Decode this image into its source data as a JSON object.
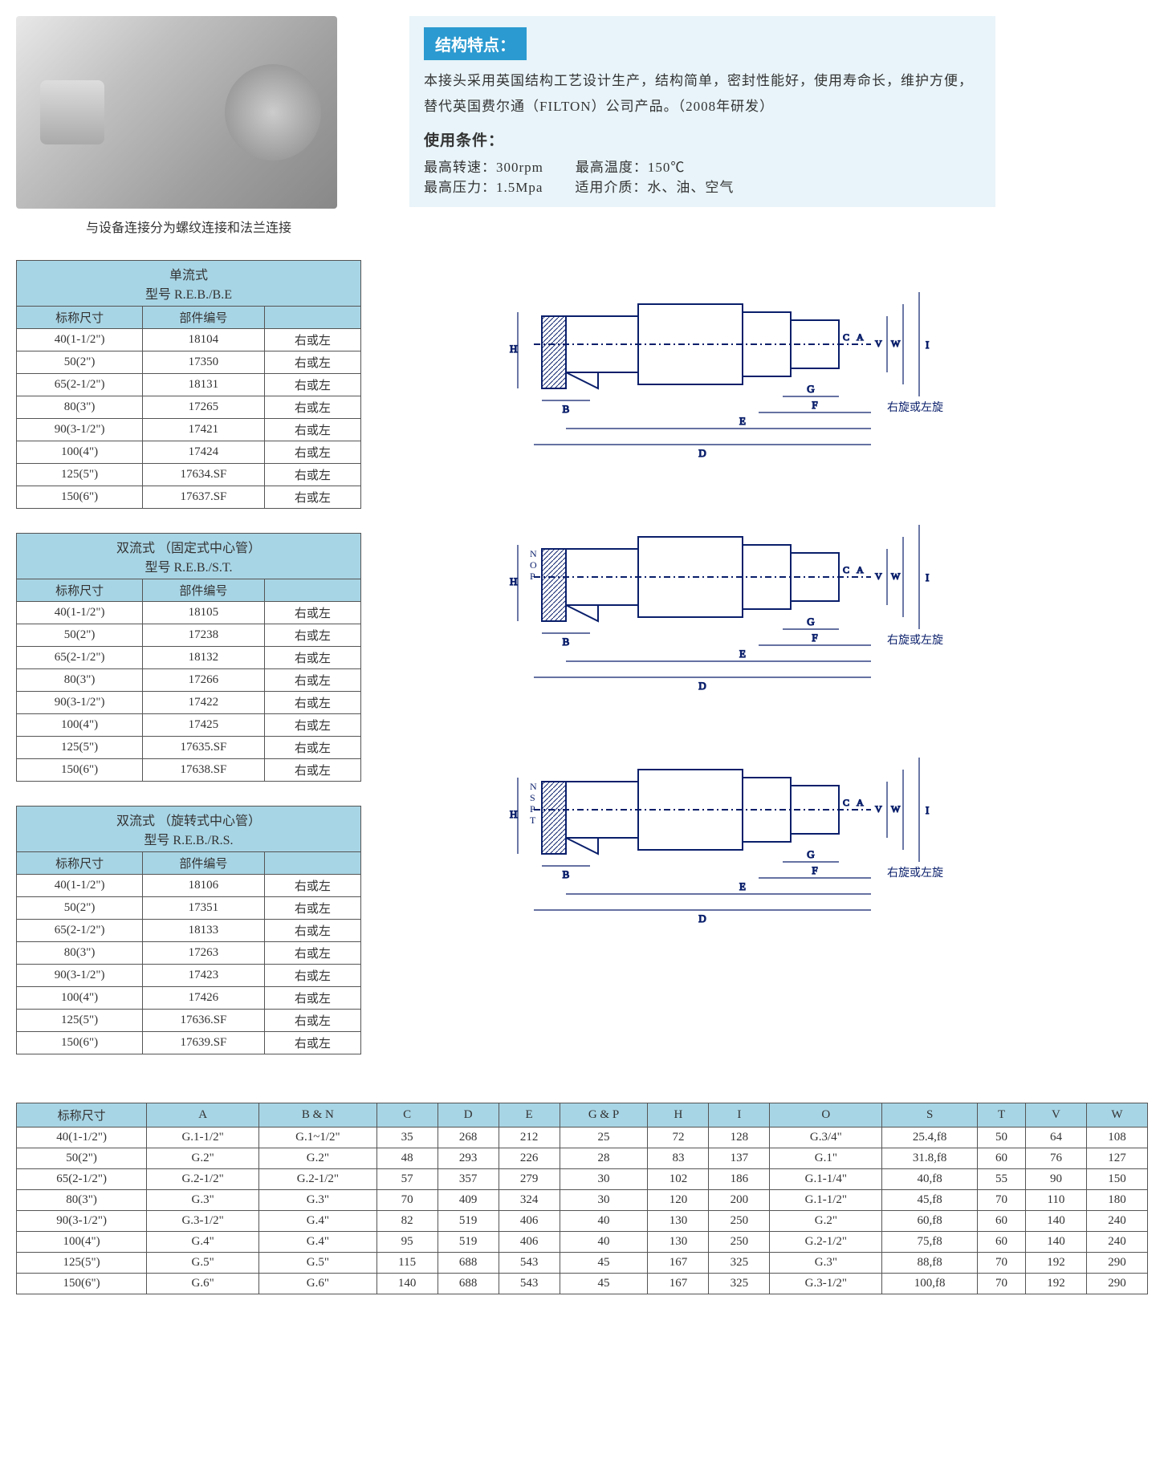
{
  "caption": "与设备连接分为螺纹连接和法兰连接",
  "features_header": "结构特点：",
  "features_text": "本接头采用英国结构工艺设计生产，结构简单，密封性能好，使用寿命长，维护方便，替代英国费尔通（FILTON）公司产品。（2008年研发）",
  "conditions_label": "使用条件：",
  "cond_speed": "最高转速：300rpm",
  "cond_temp": "最高温度：150℃",
  "cond_press": "最高压力：1.5Mpa",
  "cond_medium": "适用介质：水、油、空气",
  "tables": [
    {
      "title1": "单流式",
      "title2": "型号 R.E.B./B.E",
      "col1": "标称尺寸",
      "col2": "部件编号",
      "col3": "",
      "rows": [
        [
          "40(1-1/2\")",
          "18104",
          "右或左"
        ],
        [
          "50(2\")",
          "17350",
          "右或左"
        ],
        [
          "65(2-1/2\")",
          "18131",
          "右或左"
        ],
        [
          "80(3\")",
          "17265",
          "右或左"
        ],
        [
          "90(3-1/2\")",
          "17421",
          "右或左"
        ],
        [
          "100(4\")",
          "17424",
          "右或左"
        ],
        [
          "125(5\")",
          "17634.SF",
          "右或左"
        ],
        [
          "150(6\")",
          "17637.SF",
          "右或左"
        ]
      ]
    },
    {
      "title1": "双流式 （固定式中心管）",
      "title2": "型号 R.E.B./S.T.",
      "col1": "标称尺寸",
      "col2": "部件编号",
      "col3": "",
      "rows": [
        [
          "40(1-1/2\")",
          "18105",
          "右或左"
        ],
        [
          "50(2\")",
          "17238",
          "右或左"
        ],
        [
          "65(2-1/2\")",
          "18132",
          "右或左"
        ],
        [
          "80(3\")",
          "17266",
          "右或左"
        ],
        [
          "90(3-1/2\")",
          "17422",
          "右或左"
        ],
        [
          "100(4\")",
          "17425",
          "右或左"
        ],
        [
          "125(5\")",
          "17635.SF",
          "右或左"
        ],
        [
          "150(6\")",
          "17638.SF",
          "右或左"
        ]
      ]
    },
    {
      "title1": "双流式 （旋转式中心管）",
      "title2": "型号 R.E.B./R.S.",
      "col1": "标称尺寸",
      "col2": "部件编号",
      "col3": "",
      "rows": [
        [
          "40(1-1/2\")",
          "18106",
          "右或左"
        ],
        [
          "50(2\")",
          "17351",
          "右或左"
        ],
        [
          "65(2-1/2\")",
          "18133",
          "右或左"
        ],
        [
          "80(3\")",
          "17263",
          "右或左"
        ],
        [
          "90(3-1/2\")",
          "17423",
          "右或左"
        ],
        [
          "100(4\")",
          "17426",
          "右或左"
        ],
        [
          "125(5\")",
          "17636.SF",
          "右或左"
        ],
        [
          "150(6\")",
          "17639.SF",
          "右或左"
        ]
      ]
    }
  ],
  "big_table": {
    "columns": [
      "标称尺寸",
      "A",
      "B & N",
      "C",
      "D",
      "E",
      "G & P",
      "H",
      "I",
      "O",
      "S",
      "T",
      "V",
      "W"
    ],
    "rows": [
      [
        "40(1-1/2\")",
        "G.1-1/2\"",
        "G.1~1/2\"",
        "35",
        "268",
        "212",
        "25",
        "72",
        "128",
        "G.3/4\"",
        "25.4,f8",
        "50",
        "64",
        "108"
      ],
      [
        "50(2\")",
        "G.2\"",
        "G.2\"",
        "48",
        "293",
        "226",
        "28",
        "83",
        "137",
        "G.1\"",
        "31.8,f8",
        "60",
        "76",
        "127"
      ],
      [
        "65(2-1/2\")",
        "G.2-1/2\"",
        "G.2-1/2\"",
        "57",
        "357",
        "279",
        "30",
        "102",
        "186",
        "G.1-1/4\"",
        "40,f8",
        "55",
        "90",
        "150"
      ],
      [
        "80(3\")",
        "G.3\"",
        "G.3\"",
        "70",
        "409",
        "324",
        "30",
        "120",
        "200",
        "G.1-1/2\"",
        "45,f8",
        "70",
        "110",
        "180"
      ],
      [
        "90(3-1/2\")",
        "G.3-1/2\"",
        "G.4\"",
        "82",
        "519",
        "406",
        "40",
        "130",
        "250",
        "G.2\"",
        "60,f8",
        "60",
        "140",
        "240"
      ],
      [
        "100(4\")",
        "G.4\"",
        "G.4\"",
        "95",
        "519",
        "406",
        "40",
        "130",
        "250",
        "G.2-1/2\"",
        "75,f8",
        "60",
        "140",
        "240"
      ],
      [
        "125(5\")",
        "G.5\"",
        "G.5\"",
        "115",
        "688",
        "543",
        "45",
        "167",
        "325",
        "G.3\"",
        "88,f8",
        "70",
        "192",
        "290"
      ],
      [
        "150(6\")",
        "G.6\"",
        "G.6\"",
        "140",
        "688",
        "543",
        "45",
        "167",
        "325",
        "G.3-1/2\"",
        "100,f8",
        "70",
        "192",
        "290"
      ]
    ]
  },
  "diagram_labels": {
    "dims": [
      "A",
      "B",
      "C",
      "D",
      "E",
      "F",
      "G",
      "H",
      "I",
      "V",
      "W"
    ],
    "extra2": [
      "N",
      "O",
      "P"
    ],
    "extra3": [
      "N",
      "S",
      "P",
      "T"
    ],
    "rotation": "右旋或左旋"
  },
  "colors": {
    "header_bg": "#2b9ad0",
    "table_hdr": "#a8d5e5",
    "info_bg": "#e8f4f9",
    "diagram": "#0a1f6b"
  }
}
